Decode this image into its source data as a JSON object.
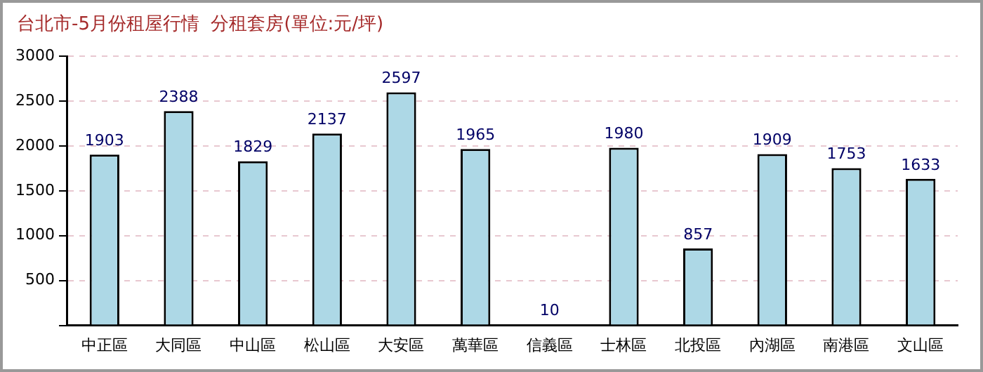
{
  "chart_data": {
    "type": "bar",
    "title": "台北市-5月份租屋行情  分租套房(單位:元/坪)",
    "categories": [
      "中正區",
      "大同區",
      "中山區",
      "松山區",
      "大安區",
      "萬華區",
      "信義區",
      "士林區",
      "北投區",
      "內湖區",
      "南港區",
      "文山區"
    ],
    "values": [
      1903,
      2388,
      1829,
      2137,
      2597,
      1965,
      10,
      1980,
      857,
      1909,
      1753,
      1633
    ],
    "color": "#add8e6",
    "ylim": [
      0,
      3000
    ],
    "yticks": [
      {
        "value": 0,
        "label": null
      },
      500,
      1000,
      1500,
      2000,
      2500,
      3000
    ],
    "grid": "y",
    "data_labels": true,
    "legend": false
  }
}
